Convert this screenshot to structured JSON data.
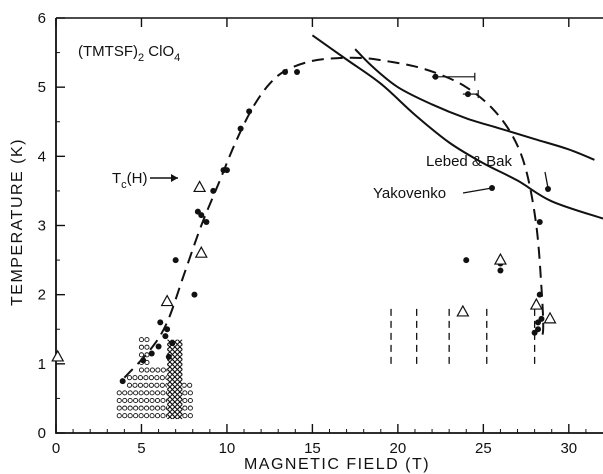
{
  "chart_data": {
    "type": "scatter",
    "title": "",
    "xlabel": "MAGNETIC FIELD (T)",
    "ylabel": "TEMPERATURE (K)",
    "xlim": [
      0,
      32
    ],
    "ylim": [
      0,
      6
    ],
    "x_ticks": [
      0,
      5,
      10,
      15,
      20,
      25,
      30
    ],
    "y_ticks": [
      0,
      1,
      2,
      3,
      4,
      5,
      6
    ],
    "grid": false,
    "annotations": {
      "compound": "(TMTSF)",
      "compound_sub": "2",
      "compound_rest": " ClO",
      "compound_sub2": "4",
      "tc_label": "T",
      "tc_sub": "c",
      "tc_rest": "(H)",
      "lebed": "Lebed & Bak",
      "yakovenko": "Yakovenko"
    },
    "series": [
      {
        "marker": "filled-circle",
        "points": [
          [
            3.9,
            0.75
          ],
          [
            5.1,
            1.05
          ],
          [
            5.6,
            1.15
          ],
          [
            6.0,
            1.25
          ],
          [
            6.1,
            1.6
          ],
          [
            6.4,
            1.4
          ],
          [
            6.5,
            1.5
          ],
          [
            6.6,
            1.1
          ],
          [
            6.8,
            1.3
          ],
          [
            7.0,
            2.5
          ],
          [
            8.1,
            2.0
          ],
          [
            8.3,
            3.2
          ],
          [
            8.5,
            3.15
          ],
          [
            8.8,
            3.05
          ],
          [
            9.2,
            3.5
          ],
          [
            9.8,
            3.8
          ],
          [
            10.0,
            3.8
          ],
          [
            10.8,
            4.4
          ],
          [
            11.3,
            4.65
          ],
          [
            13.4,
            5.22
          ],
          [
            14.1,
            5.22
          ],
          [
            22.2,
            5.15
          ],
          [
            24.1,
            4.9
          ],
          [
            24.0,
            2.5
          ],
          [
            26.0,
            2.35
          ],
          [
            26.0,
            2.45
          ],
          [
            28.0,
            1.45
          ],
          [
            28.2,
            1.6
          ],
          [
            28.2,
            1.5
          ],
          [
            28.3,
            3.05
          ],
          [
            28.3,
            2.0
          ],
          [
            28.4,
            1.65
          ]
        ]
      },
      {
        "marker": "open-triangle",
        "points": [
          [
            0.1,
            1.1
          ],
          [
            6.5,
            1.9
          ],
          [
            8.5,
            2.6
          ],
          [
            8.4,
            3.55
          ],
          [
            23.8,
            1.75
          ],
          [
            26.0,
            2.5
          ],
          [
            28.1,
            1.85
          ],
          [
            28.9,
            1.65
          ]
        ]
      },
      {
        "name": "T_c(H)",
        "style": "dashed",
        "points": [
          [
            4.0,
            0.8
          ],
          [
            5.5,
            1.2
          ],
          [
            6.5,
            1.6
          ],
          [
            7.5,
            2.3
          ],
          [
            8.5,
            3.0
          ],
          [
            9.5,
            3.6
          ],
          [
            10.5,
            4.2
          ],
          [
            11.5,
            4.7
          ],
          [
            12.5,
            5.05
          ],
          [
            13.5,
            5.25
          ],
          [
            15.0,
            5.38
          ],
          [
            16.5,
            5.42
          ],
          [
            18.0,
            5.42
          ],
          [
            19.5,
            5.37
          ],
          [
            21.0,
            5.3
          ],
          [
            22.5,
            5.18
          ],
          [
            24.0,
            5.0
          ],
          [
            25.5,
            4.7
          ],
          [
            26.7,
            4.3
          ],
          [
            27.5,
            3.8
          ],
          [
            28.1,
            3.0
          ],
          [
            28.4,
            2.1
          ],
          [
            28.5,
            1.5
          ],
          [
            28.3,
            1.35
          ]
        ]
      },
      {
        "name": "Lebed & Bak",
        "style": "solid",
        "points": [
          [
            17.5,
            5.55
          ],
          [
            18.5,
            5.3
          ],
          [
            20.0,
            5.0
          ],
          [
            22.0,
            4.75
          ],
          [
            24.0,
            4.55
          ],
          [
            26.0,
            4.4
          ],
          [
            28.0,
            4.25
          ],
          [
            30.0,
            4.1
          ],
          [
            31.5,
            3.95
          ]
        ]
      },
      {
        "name": "Yakovenko",
        "style": "solid",
        "points": [
          [
            15.0,
            5.75
          ],
          [
            17.0,
            5.4
          ],
          [
            19.0,
            5.05
          ],
          [
            21.0,
            4.6
          ],
          [
            23.0,
            4.2
          ],
          [
            25.0,
            3.9
          ],
          [
            27.0,
            3.65
          ],
          [
            29.0,
            3.35
          ],
          [
            32.0,
            3.1
          ]
        ]
      }
    ],
    "error_bars": [
      {
        "x": 22.2,
        "y": 5.15,
        "x_from": 22.0,
        "x_to": 24.5
      },
      {
        "x": 24.1,
        "y": 4.9,
        "x_from": 23.8,
        "x_to": 24.7
      }
    ],
    "vertical_dashed_lines": [
      {
        "x": 19.6,
        "y_from": 1.0,
        "y_to": 1.85
      },
      {
        "x": 21.1,
        "y_from": 1.0,
        "y_to": 1.85
      },
      {
        "x": 23.0,
        "y_from": 1.0,
        "y_to": 1.85
      },
      {
        "x": 25.2,
        "y_from": 1.0,
        "y_to": 1.85
      },
      {
        "x": 28.0,
        "y_from": 1.0,
        "y_to": 1.85
      }
    ],
    "open_circle_region": {
      "x_from": 3.7,
      "x_to": 8.0,
      "y_from": 0.25,
      "y_to": 1.4
    },
    "hatched_region": {
      "x_from": 6.5,
      "x_to": 7.4,
      "y_from": 0.2,
      "y_to": 1.35
    }
  }
}
